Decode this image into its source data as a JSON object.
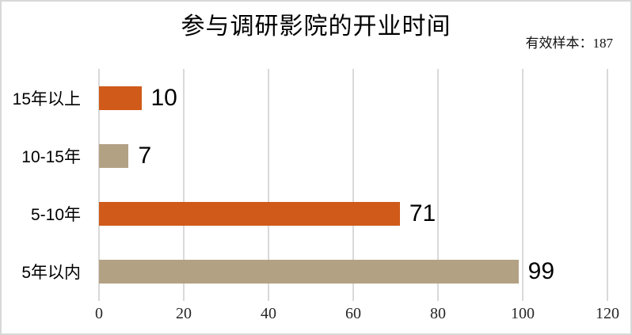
{
  "chart_data": {
    "type": "bar",
    "orientation": "horizontal",
    "title": "参与调研影院的开业时间",
    "annotation": "有效样本：187",
    "categories": [
      "15年以上",
      "10-15年",
      "5-10年",
      "5年以内"
    ],
    "values": [
      10,
      7,
      71,
      99
    ],
    "bar_colors": [
      "#d05a1a",
      "#b3a184",
      "#d05a1a",
      "#b3a184"
    ],
    "value_labels": true,
    "xlabel": "",
    "ylabel": "",
    "xlim": [
      0,
      120
    ],
    "x_ticks": [
      0,
      20,
      40,
      60,
      80,
      100,
      120
    ],
    "grid": "vertical",
    "legend_position": "none"
  },
  "style": {
    "bar_orange": "#d05a1a",
    "bar_tan": "#b3a184",
    "gridline_color": "#d9d9d9",
    "frame_border_color": "#d8d8d8",
    "title_color": "#000000",
    "tick_color": "#262626"
  }
}
